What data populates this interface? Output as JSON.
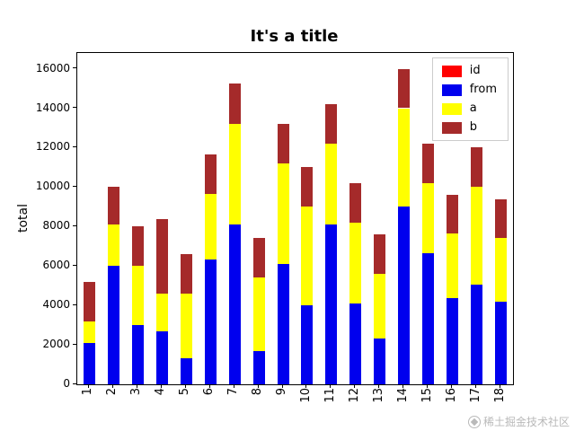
{
  "title": "It's a title",
  "watermark": "稀土掘金技术社区",
  "chart_data": {
    "type": "bar",
    "stacked": true,
    "title": "It's a title",
    "xlabel": "",
    "ylabel": "total",
    "grid": false,
    "legend_position": "upper right",
    "ylim": [
      0,
      16800
    ],
    "yticks": [
      0,
      2000,
      4000,
      6000,
      8000,
      10000,
      12000,
      14000,
      16000
    ],
    "categories": [
      "1",
      "2",
      "3",
      "4",
      "5",
      "6",
      "7",
      "8",
      "9",
      "10",
      "11",
      "12",
      "13",
      "14",
      "15",
      "16",
      "17",
      "18"
    ],
    "series": [
      {
        "name": "id",
        "color": "#ff0000",
        "values": [
          0,
          0,
          0,
          0,
          0,
          0,
          0,
          0,
          0,
          0,
          0,
          0,
          0,
          0,
          0,
          0,
          0,
          0
        ]
      },
      {
        "name": "from",
        "color": "#0000ee",
        "values": [
          2100,
          6000,
          3000,
          2700,
          1300,
          6350,
          8100,
          1700,
          6100,
          4000,
          8100,
          4100,
          2300,
          9000,
          6650,
          4350,
          5050,
          4200
        ]
      },
      {
        "name": "a",
        "color": "#ffff00",
        "values": [
          1100,
          2100,
          3000,
          1900,
          3300,
          3300,
          5100,
          3700,
          5100,
          5000,
          4100,
          4100,
          3300,
          5000,
          3550,
          3300,
          4950,
          3200
        ]
      },
      {
        "name": "b",
        "color": "#a52a2a",
        "values": [
          2000,
          1900,
          2000,
          3800,
          2000,
          2000,
          2050,
          2000,
          2000,
          2000,
          2000,
          2000,
          2000,
          2000,
          2000,
          1950,
          2000,
          2000
        ]
      }
    ],
    "totals": [
      5200,
      10000,
      8000,
      8400,
      6600,
      11650,
      15250,
      7400,
      13200,
      11000,
      14200,
      10200,
      7600,
      16000,
      12200,
      9600,
      12000,
      9400
    ]
  }
}
